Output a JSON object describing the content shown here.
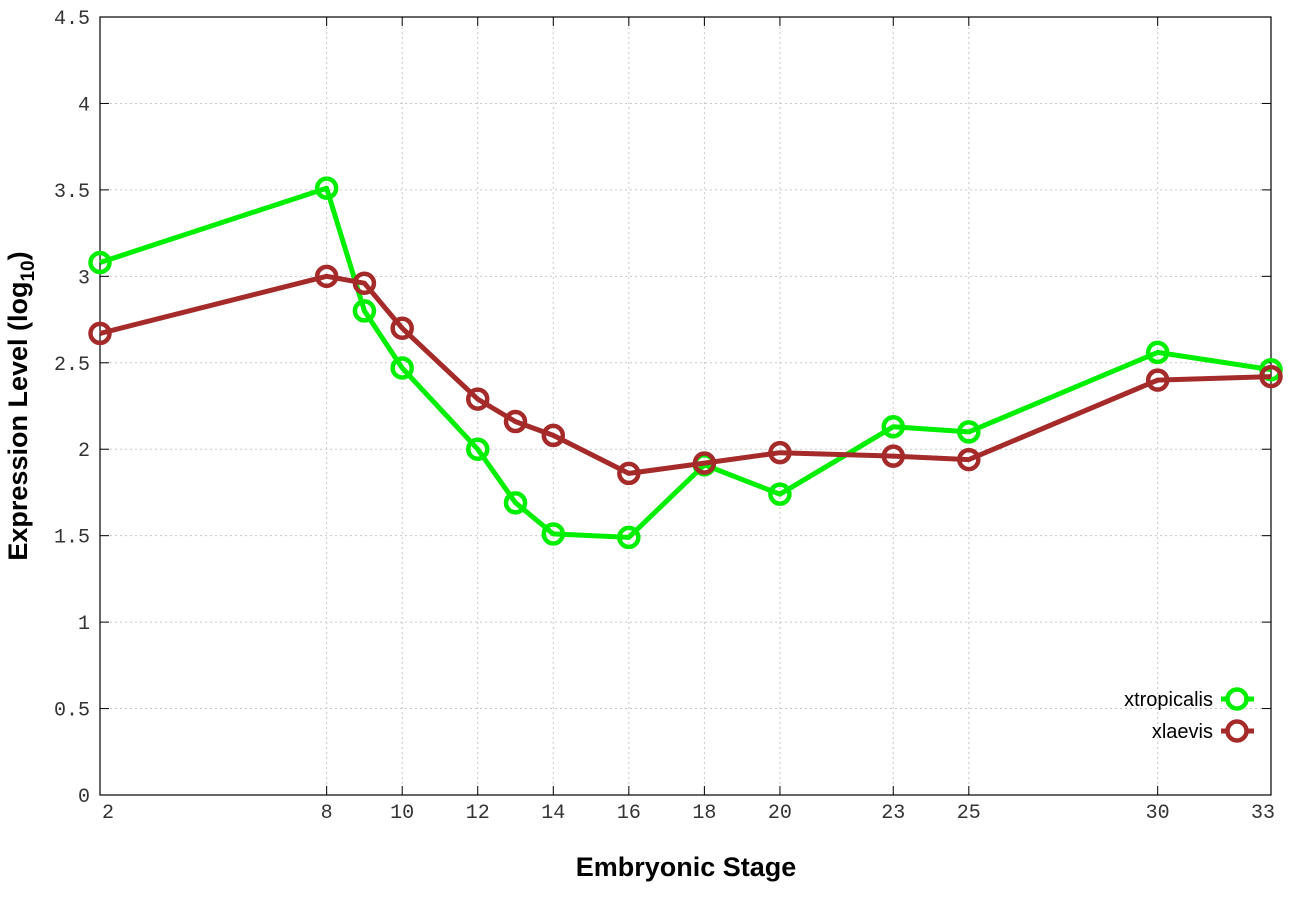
{
  "chart_data": {
    "type": "line",
    "title": "",
    "xlabel": "Embryonic Stage",
    "ylabel": "Expression Level (log",
    "ylabel_sub": "10",
    "ylabel_close": ")",
    "ylim": [
      0,
      4.5
    ],
    "y_ticks": [
      0,
      0.5,
      1,
      1.5,
      2,
      2.5,
      3,
      3.5,
      4,
      4.5
    ],
    "y_tick_labels": [
      "0",
      "0.5",
      "1",
      "1.5",
      "2",
      "2.5",
      "3",
      "3.5",
      "4",
      "4.5"
    ],
    "x_ticks": [
      2,
      8,
      10,
      12,
      14,
      16,
      18,
      20,
      23,
      25,
      30,
      33
    ],
    "x_tick_labels": [
      "2",
      "8",
      "10",
      "12",
      "14",
      "16",
      "18",
      "20",
      "23",
      "25",
      "30",
      "33"
    ],
    "grid": true,
    "legend_position": "bottom-right",
    "series": [
      {
        "name": "xtropicalis",
        "color": "#00ee00",
        "marker": "open-circle",
        "x": [
          2,
          8,
          9,
          10,
          12,
          13,
          14,
          16,
          18,
          20,
          23,
          25,
          30,
          33
        ],
        "y": [
          3.08,
          3.51,
          2.8,
          2.47,
          2.0,
          1.69,
          1.51,
          1.49,
          1.91,
          1.74,
          2.13,
          2.1,
          2.56,
          2.46
        ]
      },
      {
        "name": "xlaevis",
        "color": "#a52a2a",
        "marker": "open-circle",
        "x": [
          2,
          8,
          9,
          10,
          12,
          13,
          14,
          16,
          18,
          20,
          23,
          25,
          30,
          33
        ],
        "y": [
          2.67,
          3.0,
          2.96,
          2.7,
          2.29,
          2.16,
          2.08,
          1.86,
          1.92,
          1.98,
          1.96,
          1.94,
          2.4,
          2.42
        ]
      }
    ]
  }
}
